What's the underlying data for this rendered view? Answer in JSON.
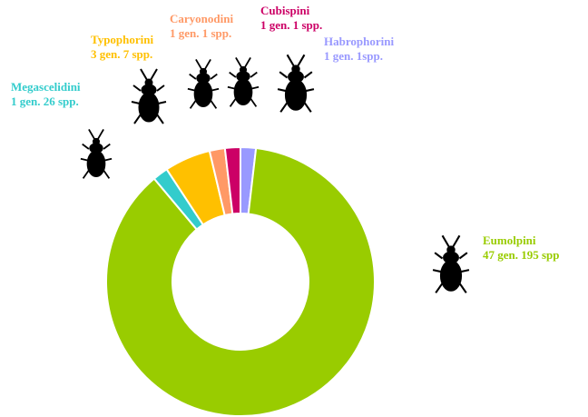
{
  "chart_data": {
    "type": "donut",
    "categories": [
      "Habrophorini",
      "Eumolpini",
      "Megascelidini",
      "Typophorini",
      "Caryonodini",
      "Cubispini"
    ],
    "values": [
      1,
      47,
      1,
      3,
      1,
      1
    ],
    "value_labels": [
      "1 gen. 1spp.",
      "47 gen.  195 spp",
      "1 gen. 26 spp.",
      "3 gen. 7 spp.",
      "1 gen. 1 spp.",
      "1 gen. 1 spp."
    ],
    "colors": [
      "#9999ff",
      "#99cc00",
      "#33cccc",
      "#ffc000",
      "#ff9966",
      "#cc0066"
    ]
  }
}
